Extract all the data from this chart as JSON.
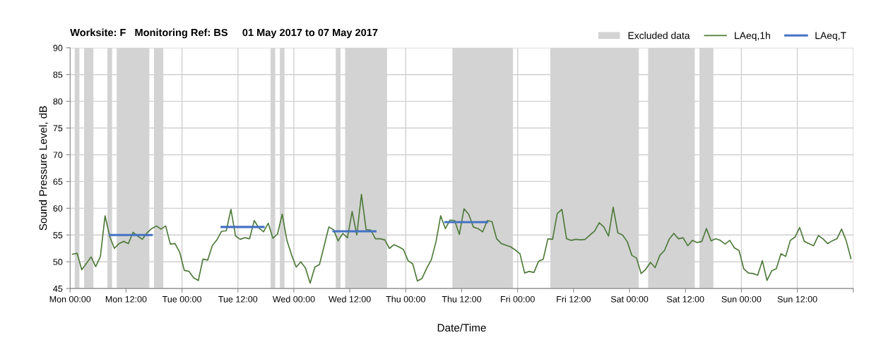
{
  "chart_data": {
    "type": "line",
    "title": "Worksite: F   Monitoring Ref: BS     01 May 2017 to 07 May 2017",
    "xlabel": "Date/Time",
    "ylabel": "Sound Pressure Level, dB",
    "xlim": [
      "2017-05-01T00:00",
      "2017-05-08T00:00"
    ],
    "ylim": [
      45,
      90
    ],
    "xticks": [
      {
        "value": "2017-05-01T00:00",
        "label": "Mon 00:00"
      },
      {
        "value": "2017-05-01T12:00",
        "label": "Mon 12:00"
      },
      {
        "value": "2017-05-02T00:00",
        "label": "Tue 00:00"
      },
      {
        "value": "2017-05-02T12:00",
        "label": "Tue 12:00"
      },
      {
        "value": "2017-05-03T00:00",
        "label": "Wed 00:00"
      },
      {
        "value": "2017-05-03T12:00",
        "label": "Wed 12:00"
      },
      {
        "value": "2017-05-04T00:00",
        "label": "Thu 00:00"
      },
      {
        "value": "2017-05-04T12:00",
        "label": "Thu 12:00"
      },
      {
        "value": "2017-05-05T00:00",
        "label": "Fri 00:00"
      },
      {
        "value": "2017-05-05T12:00",
        "label": "Fri 12:00"
      },
      {
        "value": "2017-05-06T00:00",
        "label": "Sat 00:00"
      },
      {
        "value": "2017-05-06T12:00",
        "label": "Sat 12:00"
      },
      {
        "value": "2017-05-07T00:00",
        "label": "Sun 00:00"
      },
      {
        "value": "2017-05-07T12:00",
        "label": "Sun 12:00"
      },
      {
        "value": "2017-05-08T00:00",
        "label": null
      }
    ],
    "yticks": [
      45,
      50,
      55,
      60,
      65,
      70,
      75,
      80,
      85,
      90
    ],
    "grid": true,
    "legend": "top right",
    "marker": "none",
    "line_style": "solid",
    "bands": [
      {
        "axis": "x",
        "from": "2017-05-01T01:00",
        "to": "2017-05-01T02:00",
        "label": "Excluded data",
        "color": "#d3d3d3"
      },
      {
        "axis": "x",
        "from": "2017-05-01T03:00",
        "to": "2017-05-01T05:00",
        "color": "#d3d3d3"
      },
      {
        "axis": "x",
        "from": "2017-05-01T08:00",
        "to": "2017-05-01T09:00",
        "color": "#d3d3d3"
      },
      {
        "axis": "x",
        "from": "2017-05-01T10:00",
        "to": "2017-05-01T17:00",
        "color": "#d3d3d3"
      },
      {
        "axis": "x",
        "from": "2017-05-01T18:00",
        "to": "2017-05-01T20:00",
        "color": "#d3d3d3"
      },
      {
        "axis": "x",
        "from": "2017-05-02T19:00",
        "to": "2017-05-02T20:00",
        "color": "#d3d3d3"
      },
      {
        "axis": "x",
        "from": "2017-05-02T21:00",
        "to": "2017-05-02T22:00",
        "color": "#d3d3d3"
      },
      {
        "axis": "x",
        "from": "2017-05-03T09:00",
        "to": "2017-05-03T10:00",
        "color": "#d3d3d3"
      },
      {
        "axis": "x",
        "from": "2017-05-03T11:00",
        "to": "2017-05-03T20:00",
        "color": "#d3d3d3"
      },
      {
        "axis": "x",
        "from": "2017-05-04T10:00",
        "to": "2017-05-04T23:00",
        "color": "#d3d3d3"
      },
      {
        "axis": "x",
        "from": "2017-05-05T07:00",
        "to": "2017-05-06T02:00",
        "color": "#d3d3d3"
      },
      {
        "axis": "x",
        "from": "2017-05-06T04:00",
        "to": "2017-05-06T14:00",
        "color": "#d3d3d3"
      },
      {
        "axis": "x",
        "from": "2017-05-06T15:00",
        "to": "2017-05-06T18:00",
        "color": "#d3d3d3"
      }
    ],
    "series": [
      {
        "name": "LAeq,1h",
        "color": "#4e7a3a",
        "x": [
          "2017-05-01T00:30",
          "2017-05-01T01:30",
          "2017-05-01T02:30",
          "2017-05-01T03:30",
          "2017-05-01T04:30",
          "2017-05-01T05:30",
          "2017-05-01T06:30",
          "2017-05-01T07:30",
          "2017-05-01T08:30",
          "2017-05-01T09:30",
          "2017-05-01T10:30",
          "2017-05-01T11:30",
          "2017-05-01T12:30",
          "2017-05-01T13:30",
          "2017-05-01T14:30",
          "2017-05-01T15:30",
          "2017-05-01T16:30",
          "2017-05-01T17:30",
          "2017-05-01T18:30",
          "2017-05-01T19:30",
          "2017-05-01T20:30",
          "2017-05-01T21:30",
          "2017-05-01T22:30",
          "2017-05-01T23:30",
          "2017-05-02T00:30",
          "2017-05-02T01:30",
          "2017-05-02T02:30",
          "2017-05-02T03:30",
          "2017-05-02T04:30",
          "2017-05-02T05:30",
          "2017-05-02T06:30",
          "2017-05-02T07:30",
          "2017-05-02T08:30",
          "2017-05-02T09:30",
          "2017-05-02T10:30",
          "2017-05-02T11:30",
          "2017-05-02T12:30",
          "2017-05-02T13:30",
          "2017-05-02T14:30",
          "2017-05-02T15:30",
          "2017-05-02T16:30",
          "2017-05-02T17:30",
          "2017-05-02T18:30",
          "2017-05-02T19:30",
          "2017-05-02T20:30",
          "2017-05-02T21:30",
          "2017-05-02T22:30",
          "2017-05-02T23:30",
          "2017-05-03T00:30",
          "2017-05-03T01:30",
          "2017-05-03T02:30",
          "2017-05-03T03:30",
          "2017-05-03T04:30",
          "2017-05-03T05:30",
          "2017-05-03T06:30",
          "2017-05-03T07:30",
          "2017-05-03T08:30",
          "2017-05-03T09:30",
          "2017-05-03T10:30",
          "2017-05-03T11:30",
          "2017-05-03T12:30",
          "2017-05-03T13:30",
          "2017-05-03T14:30",
          "2017-05-03T15:30",
          "2017-05-03T16:30",
          "2017-05-03T17:30",
          "2017-05-03T18:30",
          "2017-05-03T19:30",
          "2017-05-03T20:30",
          "2017-05-03T21:30",
          "2017-05-03T22:30",
          "2017-05-03T23:30",
          "2017-05-04T00:30",
          "2017-05-04T01:30",
          "2017-05-04T02:30",
          "2017-05-04T03:30",
          "2017-05-04T04:30",
          "2017-05-04T05:30",
          "2017-05-04T06:30",
          "2017-05-04T07:30",
          "2017-05-04T08:30",
          "2017-05-04T09:30",
          "2017-05-04T10:30",
          "2017-05-04T11:30",
          "2017-05-04T12:30",
          "2017-05-04T13:30",
          "2017-05-04T14:30",
          "2017-05-04T15:30",
          "2017-05-04T16:30",
          "2017-05-04T17:30",
          "2017-05-04T18:30",
          "2017-05-04T19:30",
          "2017-05-04T20:30",
          "2017-05-04T21:30",
          "2017-05-04T22:30",
          "2017-05-04T23:30",
          "2017-05-05T00:30",
          "2017-05-05T01:30",
          "2017-05-05T02:30",
          "2017-05-05T03:30",
          "2017-05-05T04:30",
          "2017-05-05T05:30",
          "2017-05-05T06:30",
          "2017-05-05T07:30",
          "2017-05-05T08:30",
          "2017-05-05T09:30",
          "2017-05-05T10:30",
          "2017-05-05T11:30",
          "2017-05-05T12:30",
          "2017-05-05T13:30",
          "2017-05-05T14:30",
          "2017-05-05T15:30",
          "2017-05-05T16:30",
          "2017-05-05T17:30",
          "2017-05-05T18:30",
          "2017-05-05T19:30",
          "2017-05-05T20:30",
          "2017-05-05T21:30",
          "2017-05-05T22:30",
          "2017-05-05T23:30",
          "2017-05-06T00:30",
          "2017-05-06T01:30",
          "2017-05-06T02:30",
          "2017-05-06T03:30",
          "2017-05-06T04:30",
          "2017-05-06T05:30",
          "2017-05-06T06:30",
          "2017-05-06T07:30",
          "2017-05-06T08:30",
          "2017-05-06T09:30",
          "2017-05-06T10:30",
          "2017-05-06T11:30",
          "2017-05-06T12:30",
          "2017-05-06T13:30",
          "2017-05-06T14:30",
          "2017-05-06T15:30",
          "2017-05-06T16:30",
          "2017-05-06T17:30",
          "2017-05-06T18:30",
          "2017-05-06T19:30",
          "2017-05-06T20:30",
          "2017-05-06T21:30",
          "2017-05-06T22:30",
          "2017-05-06T23:30",
          "2017-05-07T00:30",
          "2017-05-07T01:30",
          "2017-05-07T02:30",
          "2017-05-07T03:30",
          "2017-05-07T04:30",
          "2017-05-07T05:30",
          "2017-05-07T06:30",
          "2017-05-07T07:30",
          "2017-05-07T08:30",
          "2017-05-07T09:30",
          "2017-05-07T10:30",
          "2017-05-07T11:30",
          "2017-05-07T12:30",
          "2017-05-07T13:30",
          "2017-05-07T14:30",
          "2017-05-07T15:30",
          "2017-05-07T16:30",
          "2017-05-07T17:30",
          "2017-05-07T18:30",
          "2017-05-07T19:30",
          "2017-05-07T20:30",
          "2017-05-07T21:30",
          "2017-05-07T22:30",
          "2017-05-07T23:30"
        ],
        "values": [
          51.4,
          51.6,
          48.5,
          49.7,
          50.9,
          49.1,
          51.0,
          58.6,
          54.7,
          52.5,
          53.4,
          53.8,
          53.4,
          55.5,
          54.8,
          54.2,
          55.4,
          56.2,
          56.7,
          56.1,
          56.7,
          53.3,
          53.4,
          51.8,
          48.4,
          48.2,
          47.0,
          46.5,
          50.5,
          50.3,
          53.0,
          54.1,
          55.7,
          55.8,
          59.8,
          54.8,
          54.2,
          54.5,
          54.3,
          57.7,
          56.3,
          55.6,
          57.2,
          54.4,
          55.2,
          58.9,
          54.0,
          51.3,
          49.0,
          50.0,
          48.8,
          46.0,
          49.0,
          49.5,
          53.0,
          56.5,
          56.0,
          53.9,
          55.3,
          54.5,
          59.4,
          55.0,
          62.6,
          56.0,
          55.9,
          54.3,
          54.3,
          54.1,
          52.5,
          53.2,
          52.8,
          52.3,
          50.2,
          49.6,
          46.4,
          46.9,
          48.8,
          50.4,
          53.8,
          58.6,
          56.2,
          57.8,
          57.7,
          55.1,
          59.9,
          58.9,
          56.5,
          56.2,
          55.6,
          57.7,
          57.5,
          54.3,
          53.4,
          53.1,
          52.8,
          52.2,
          51.5,
          47.9,
          48.2,
          48.0,
          50.1,
          50.5,
          54.3,
          54.2,
          59.0,
          59.8,
          54.3,
          54.0,
          54.2,
          54.1,
          54.2,
          55.0,
          55.7,
          57.3,
          56.5,
          54.8,
          60.2,
          55.4,
          55.0,
          53.8,
          51.2,
          50.7,
          47.8,
          48.6,
          49.9,
          48.9,
          51.2,
          52.1,
          54.2,
          55.3,
          54.3,
          54.5,
          53.0,
          54.0,
          53.6,
          53.8,
          56.2,
          53.9,
          54.3,
          54.0,
          53.3,
          54.0,
          52.6,
          52.1,
          48.7,
          47.9,
          47.8,
          47.5,
          50.2,
          46.5,
          48.3,
          48.7,
          51.5,
          51.0,
          54.0,
          54.6,
          56.4,
          53.8,
          53.4,
          53.0,
          54.9,
          54.3,
          53.4,
          53.9,
          54.3,
          56.1,
          53.9,
          50.6
        ]
      },
      {
        "name": "LAeq,T",
        "color": "#4472c4",
        "x": [
          "2017-05-01T08:30",
          "2017-05-01T17:30",
          "2017-05-02T01:00",
          "2017-05-02T08:30",
          "2017-05-02T17:30",
          "2017-05-03T01:00",
          "2017-05-03T08:30",
          "2017-05-03T17:30",
          "2017-05-04T01:00",
          "2017-05-04T08:30",
          "2017-05-04T17:30"
        ],
        "values": [
          55.0,
          55.0,
          null,
          56.5,
          56.5,
          null,
          55.7,
          55.7,
          null,
          57.4,
          57.4
        ]
      }
    ]
  }
}
